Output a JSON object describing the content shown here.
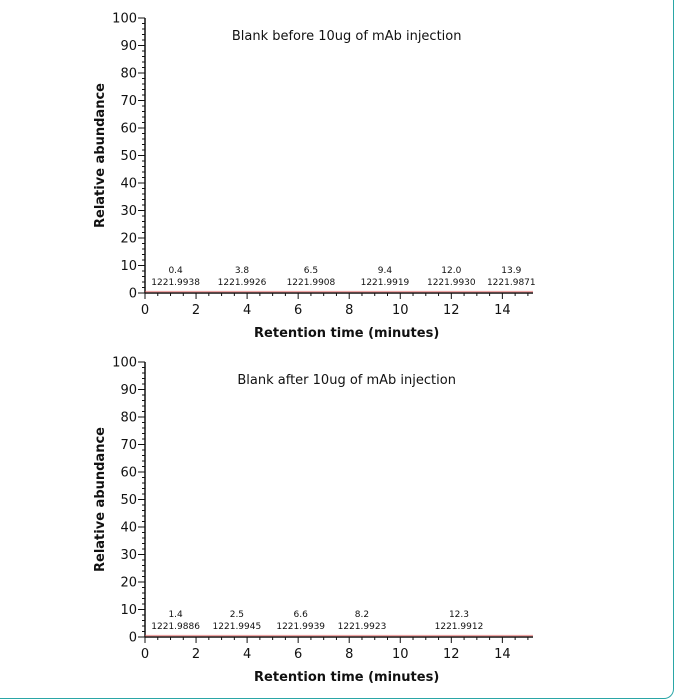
{
  "chart_data": [
    {
      "type": "line",
      "title": "Blank before 10ug of mAb injection",
      "xlabel": "Retention time (minutes)",
      "ylabel": "Relative abundance",
      "xlim": [
        0,
        15.2
      ],
      "ylim": [
        0,
        100
      ],
      "xticks": [
        0,
        2,
        4,
        6,
        8,
        10,
        12,
        14
      ],
      "yticks": [
        0,
        10,
        20,
        30,
        40,
        50,
        60,
        70,
        80,
        90,
        100
      ],
      "trace_color": "#e05a5a",
      "series": [
        {
          "x": [
            0,
            15.2
          ],
          "y": [
            0.5,
            0.5
          ]
        }
      ],
      "annotations": [
        {
          "time": "0.4",
          "mz": "1221.9938",
          "x": 1.2
        },
        {
          "time": "3.8",
          "mz": "1221.9926",
          "x": 3.8
        },
        {
          "time": "6.5",
          "mz": "1221.9908",
          "x": 6.5
        },
        {
          "time": "9.4",
          "mz": "1221.9919",
          "x": 9.4
        },
        {
          "time": "12.0",
          "mz": "1221.9930",
          "x": 12.0
        },
        {
          "time": "13.9",
          "mz": "1221.9871",
          "x": 14.35
        }
      ]
    },
    {
      "type": "line",
      "title": "Blank after 10ug of mAb injection",
      "xlabel": "Retention time (minutes)",
      "ylabel": "Relative abundance",
      "xlim": [
        0,
        15.2
      ],
      "ylim": [
        0,
        100
      ],
      "xticks": [
        0,
        2,
        4,
        6,
        8,
        10,
        12,
        14
      ],
      "yticks": [
        0,
        10,
        20,
        30,
        40,
        50,
        60,
        70,
        80,
        90,
        100
      ],
      "trace_color": "#e05a5a",
      "series": [
        {
          "x": [
            0,
            15.2
          ],
          "y": [
            0.5,
            0.5
          ]
        }
      ],
      "annotations": [
        {
          "time": "1.4",
          "mz": "1221.9886",
          "x": 1.2
        },
        {
          "time": "2.5",
          "mz": "1221.9945",
          "x": 3.6
        },
        {
          "time": "6.6",
          "mz": "1221.9939",
          "x": 6.1
        },
        {
          "time": "8.2",
          "mz": "1221.9923",
          "x": 8.5
        },
        {
          "time": "12.3",
          "mz": "1221.9912",
          "x": 12.3
        }
      ]
    }
  ]
}
